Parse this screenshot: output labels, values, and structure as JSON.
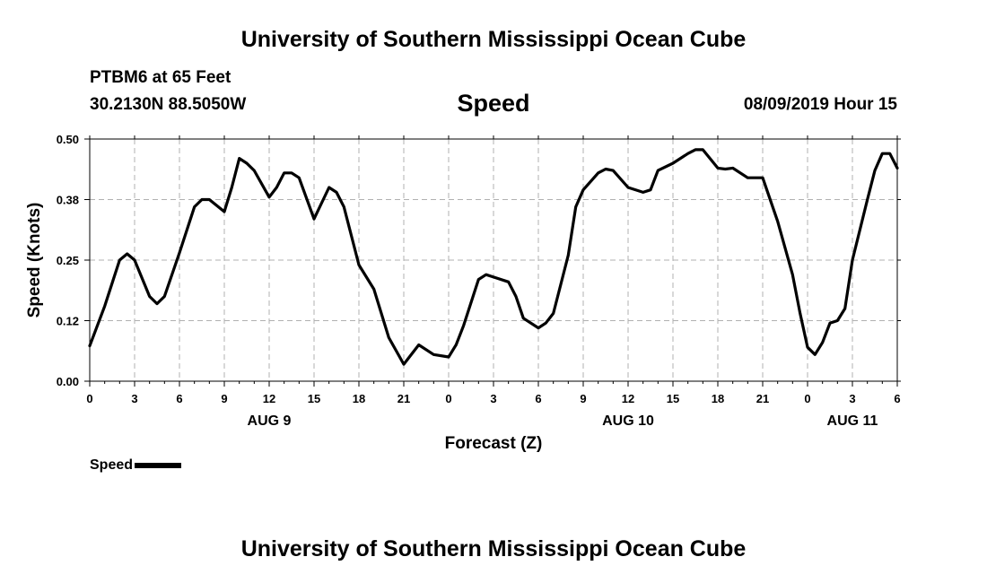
{
  "header": {
    "title": "University of Southern Mississippi Ocean Cube",
    "station": "PTBM6 at 65 Feet",
    "coords": "30.2130N 88.5050W",
    "subtitle": "Speed",
    "datestamp": "08/09/2019 Hour 15"
  },
  "footer": {
    "title": "University of Southern Mississippi Ocean Cube"
  },
  "legend": {
    "label": "Speed"
  },
  "chart_data": {
    "type": "line",
    "xlabel": "Forecast (Z)",
    "ylabel": "Speed (Knots)",
    "xlim": [
      0,
      54
    ],
    "ylim": [
      0.0,
      0.5
    ],
    "x_unit": "hours since AUG 9 00Z",
    "xtick_values": [
      0,
      3,
      6,
      9,
      12,
      15,
      18,
      21,
      24,
      27,
      30,
      33,
      36,
      39,
      42,
      45,
      48,
      51,
      54
    ],
    "xtick_labels": [
      "0",
      "3",
      "6",
      "9",
      "12",
      "15",
      "18",
      "21",
      "0",
      "3",
      "6",
      "9",
      "12",
      "15",
      "18",
      "21",
      "0",
      "3",
      "6"
    ],
    "ytick_values": [
      0.0,
      0.125,
      0.25,
      0.375,
      0.5
    ],
    "ytick_labels": [
      "0.00",
      "0.12",
      "0.25",
      "0.38",
      "0.50"
    ],
    "day_labels": [
      {
        "label": "AUG 9",
        "x": 12
      },
      {
        "label": "AUG 10",
        "x": 36
      },
      {
        "label": "AUG 11",
        "x": 51
      }
    ],
    "grid": true,
    "legend_position": "bottom-left",
    "series": [
      {
        "name": "Speed",
        "color": "#000000",
        "x": [
          0,
          1,
          2,
          2.5,
          3,
          4,
          4.5,
          5,
          6,
          7,
          7.5,
          8,
          9,
          9.5,
          10,
          10.5,
          11,
          12,
          12.5,
          13,
          13.5,
          14,
          15,
          16,
          16.5,
          17,
          18,
          19,
          20,
          21,
          22,
          23,
          24,
          24.5,
          25,
          26,
          26.5,
          27,
          28,
          28.5,
          29,
          30,
          30.5,
          31,
          32,
          32.5,
          33,
          34,
          34.5,
          35,
          36,
          37,
          37.5,
          38,
          39,
          40,
          40.5,
          41,
          42,
          42.5,
          43,
          44,
          45,
          46,
          47,
          47.5,
          48,
          48.5,
          49,
          49.5,
          50,
          50.5,
          51,
          52,
          52.5,
          53,
          53.5,
          54
        ],
        "values": [
          0.073,
          0.155,
          0.25,
          0.263,
          0.25,
          0.175,
          0.16,
          0.175,
          0.265,
          0.36,
          0.375,
          0.375,
          0.35,
          0.4,
          0.46,
          0.45,
          0.435,
          0.38,
          0.4,
          0.43,
          0.43,
          0.42,
          0.335,
          0.4,
          0.39,
          0.36,
          0.24,
          0.19,
          0.09,
          0.035,
          0.075,
          0.055,
          0.05,
          0.075,
          0.115,
          0.21,
          0.22,
          0.215,
          0.205,
          0.175,
          0.13,
          0.11,
          0.12,
          0.14,
          0.26,
          0.36,
          0.395,
          0.43,
          0.438,
          0.435,
          0.4,
          0.39,
          0.395,
          0.435,
          0.45,
          0.47,
          0.478,
          0.478,
          0.44,
          0.438,
          0.44,
          0.42,
          0.42,
          0.33,
          0.22,
          0.14,
          0.07,
          0.055,
          0.08,
          0.12,
          0.125,
          0.15,
          0.25,
          0.375,
          0.435,
          0.47,
          0.47,
          0.44
        ]
      }
    ]
  }
}
